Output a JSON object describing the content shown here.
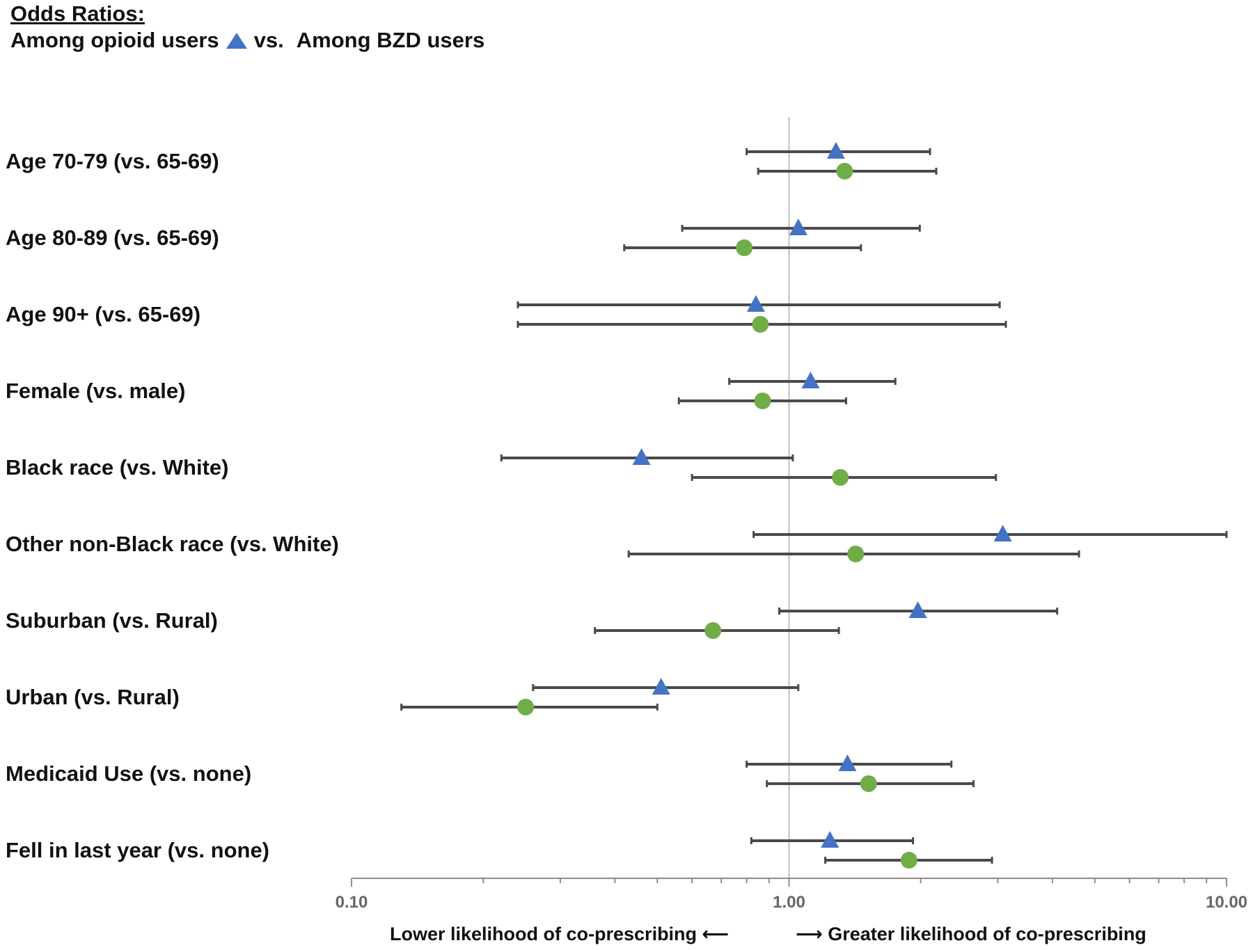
{
  "header": {
    "title": "Odds Ratios:",
    "series1_text": "Among opioid users",
    "vs_text": "vs.",
    "series2_text": "Among BZD users"
  },
  "colors": {
    "opioid": "#4472C4",
    "bzd": "#70AD47",
    "errorbar": "#4a4a4a",
    "refline": "#bfbfbf",
    "axis": "#8c8c8c"
  },
  "x_captions": {
    "left": "Lower likelihood of co-prescribing ⟵",
    "right": "⟶ Greater likelihood of co-prescribing"
  },
  "chart_data": {
    "type": "forest",
    "x_scale": "log",
    "xlim": [
      0.1,
      10
    ],
    "x_ticks": [
      "0.10",
      "1.00",
      "10.00"
    ],
    "reference_line": 1.0,
    "categories": [
      "Age 70-79 (vs. 65-69)",
      "Age 80-89 (vs. 65-69)",
      "Age 90+ (vs. 65-69)",
      "Female (vs. male)",
      "Black race (vs. White)",
      "Other non-Black race (vs. White)",
      "Suburban (vs. Rural)",
      "Urban (vs. Rural)",
      "Medicaid Use (vs. none)",
      "Fell in last year (vs. none)"
    ],
    "series": [
      {
        "name": "Among opioid users",
        "marker": "triangle",
        "or": [
          1.28,
          1.05,
          0.84,
          1.12,
          0.46,
          3.08,
          1.97,
          0.51,
          1.36,
          1.24
        ],
        "lower": [
          0.8,
          0.57,
          0.24,
          0.73,
          0.22,
          0.83,
          0.95,
          0.26,
          0.8,
          0.82
        ],
        "upper": [
          2.1,
          1.99,
          3.03,
          1.75,
          1.02,
          10.0,
          4.1,
          1.05,
          2.35,
          1.92
        ]
      },
      {
        "name": "Among BZD users",
        "marker": "circle",
        "or": [
          1.34,
          0.79,
          0.86,
          0.87,
          1.31,
          1.42,
          0.67,
          0.25,
          1.52,
          1.88
        ],
        "lower": [
          0.85,
          0.42,
          0.24,
          0.56,
          0.6,
          0.43,
          0.36,
          0.13,
          0.89,
          1.21
        ],
        "upper": [
          2.17,
          1.46,
          3.13,
          1.35,
          2.97,
          4.6,
          1.3,
          0.5,
          2.64,
          2.91
        ]
      }
    ]
  }
}
